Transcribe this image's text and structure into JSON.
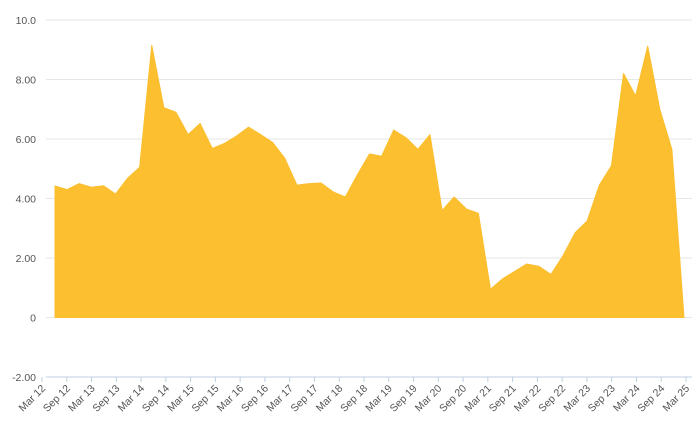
{
  "chart_data": {
    "type": "area",
    "title": "",
    "xlabel": "",
    "ylabel": "",
    "ylim": [
      -2.0,
      10.0
    ],
    "yticks": [
      -2,
      0,
      2,
      4,
      6,
      8,
      10
    ],
    "ytick_labels": [
      "-2.00",
      "0",
      "2.00",
      "4.00",
      "6.00",
      "8.00",
      "10.0"
    ],
    "x_labels": [
      "Mar 12",
      "Sep 12",
      "Mar 13",
      "Sep 13",
      "Mar 14",
      "Sep 14",
      "Mar 15",
      "Sep 15",
      "Mar 16",
      "Sep 16",
      "Mar 17",
      "Sep 17",
      "Mar 18",
      "Sep 18",
      "Mar 19",
      "Sep 19",
      "Mar 20",
      "Sep 20",
      "Mar 21",
      "Sep 21",
      "Mar 22",
      "Sep 22",
      "Mar 23",
      "Sep 23",
      "Mar 24",
      "Sep 24",
      "Mar 25"
    ],
    "grid": true,
    "legend": "none",
    "color": "#fbbf2f",
    "series": [
      {
        "values": [
          4.42,
          4.3,
          4.5,
          4.38,
          4.43,
          4.15,
          4.68,
          5.05,
          9.15,
          7.05,
          6.9,
          6.15,
          6.52,
          5.68,
          5.85,
          6.1,
          6.4,
          6.15,
          5.88,
          5.35,
          4.45,
          4.5,
          4.52,
          4.22,
          4.05,
          4.8,
          5.5,
          5.42,
          6.3,
          6.05,
          5.65,
          6.15,
          3.6,
          4.05,
          3.65,
          3.5,
          0.95,
          1.3,
          1.55,
          1.8,
          1.72,
          1.45,
          2.08,
          2.85,
          3.25,
          4.45,
          5.1,
          8.2,
          7.45,
          9.12,
          7.0,
          5.65,
          0
        ]
      }
    ]
  }
}
